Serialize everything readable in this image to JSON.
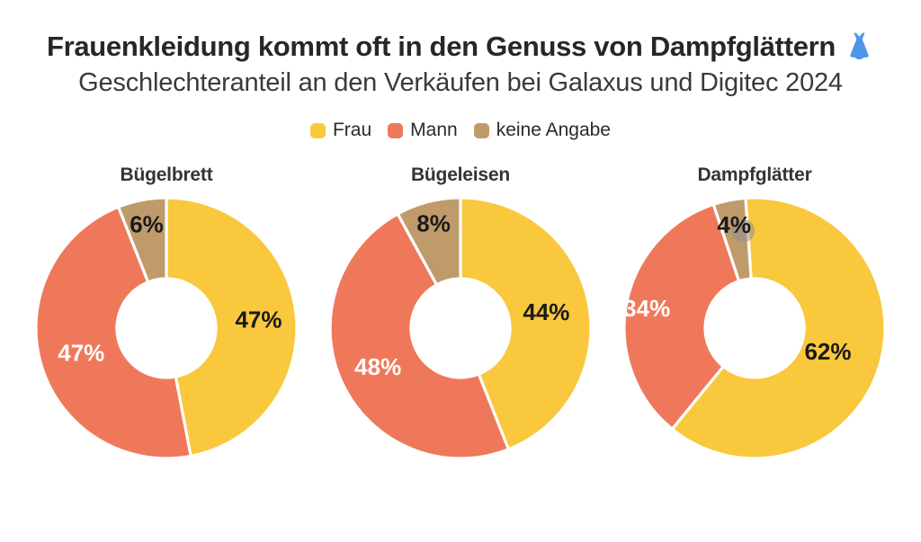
{
  "header": {
    "title": "Frauenkleidung kommt oft in den Genuss von Dampfglättern",
    "title_emoji": "blue-dress",
    "subtitle": "Geschlechteranteil an den Verkäufen bei Galaxus und Digitec 2024"
  },
  "colors": {
    "frau": "#F9C83D",
    "mann": "#F0785A",
    "keine_angabe": "#BF9B6B",
    "title_text": "#26262B",
    "subtitle_text": "#3A3A3E",
    "category_title_text": "#33333C",
    "emoji_blue": "#4D96E8",
    "slice_gap_stroke": "#FFFFFF"
  },
  "chart_data": {
    "type": "pie",
    "variant": "donut-small-multiples",
    "title": "Frauenkleidung kommt oft in den Genuss von Dampfglättern",
    "subtitle": "Geschlechteranteil an den Verkäufen bei Galaxus und Digitec 2024",
    "unit": "%",
    "legend_position": "top-center",
    "direction": "clockwise",
    "start_angle_deg": 0,
    "inner_radius_ratio": 0.38,
    "grid": false,
    "legend": [
      {
        "label": "Frau",
        "color": "#F9C83D",
        "value_label_color": "#1A1A1A"
      },
      {
        "label": "Mann",
        "color": "#F0785A",
        "value_label_color": "#FFFFFF"
      },
      {
        "label": "keine Angabe",
        "color": "#BF9B6B",
        "value_label_color": "#1A1A1A"
      }
    ],
    "charts": [
      {
        "label": "Bügelbrett",
        "values": [
          47,
          47,
          6
        ],
        "label_r": [
          0.71,
          0.68,
          0.81
        ]
      },
      {
        "label": "Bügeleisen",
        "values": [
          44,
          48,
          8
        ],
        "label_r": [
          0.67,
          0.7,
          0.83
        ]
      },
      {
        "label": "Dampfglätter",
        "values": [
          62,
          34,
          4
        ],
        "label_r": [
          0.59,
          0.84,
          0.81
        ],
        "rotate_deg": -4,
        "artifact_dot_slice": 2
      }
    ]
  }
}
